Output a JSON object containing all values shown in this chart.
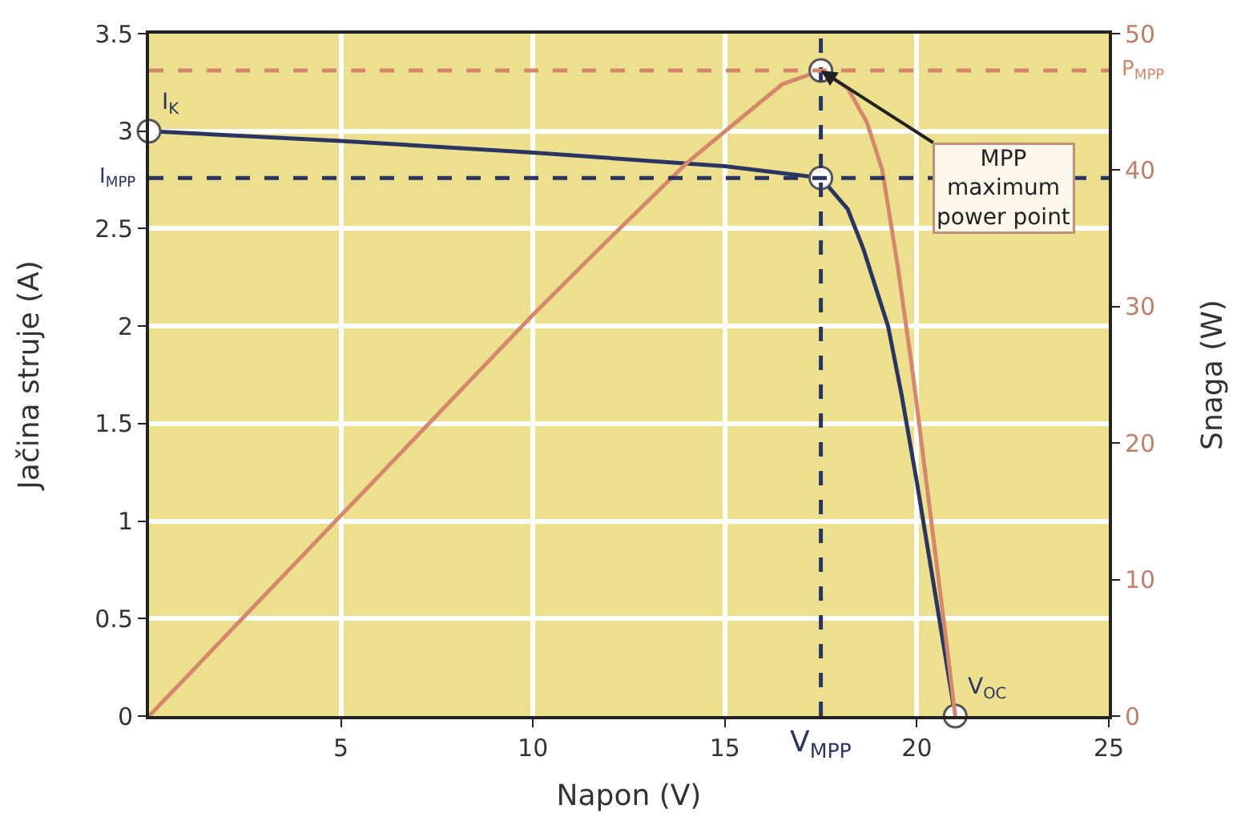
{
  "chart_data": {
    "type": "line",
    "xlabel": "Napon (V)",
    "ylabel": "Jačina struje (A)",
    "y2label": "Snaga (W)",
    "xlim": [
      0,
      25
    ],
    "xticks": [
      5,
      10,
      15,
      20,
      25
    ],
    "ylim": [
      0,
      3.5
    ],
    "yticks": [
      0,
      0.5,
      1,
      1.5,
      2,
      2.5,
      3,
      3.5
    ],
    "y2lim": [
      0,
      50
    ],
    "y2ticks": [
      0,
      10,
      20,
      30,
      40,
      50
    ],
    "grid": true,
    "marker": "none",
    "line_style": "solid",
    "series": [
      {
        "color": "#2b3562",
        "x": [
          0,
          5,
          10,
          15,
          17.5,
          18.2,
          18.6,
          19.25,
          19.6,
          20,
          20.5,
          21
        ],
        "values": [
          3.0,
          2.95,
          2.89,
          2.82,
          2.76,
          2.6,
          2.4,
          2.0,
          1.65,
          1.2,
          0.6,
          0
        ]
      },
      {
        "color": "#d4876a",
        "axis": "y2",
        "x": [
          0,
          5,
          10,
          12,
          14,
          15.5,
          16.5,
          17.5,
          18.2,
          18.7,
          19.1,
          19.5,
          19.9,
          20.3,
          20.7,
          21
        ],
        "values": [
          0,
          14.7,
          29.4,
          35,
          40.5,
          44,
          46.3,
          47.3,
          46,
          43.5,
          40,
          33,
          25,
          16,
          7,
          0
        ]
      },
      {
        "type": "scatter",
        "marker": "circle",
        "color": "#ffffff",
        "x": [
          0,
          17.5,
          21
        ],
        "values": [
          3.0,
          2.76,
          0
        ],
        "value_labels": [
          "I$_{K}$",
          null,
          "V$_{OC}$"
        ]
      },
      {
        "type": "scatter",
        "marker": "circle",
        "color": "#ffffff",
        "axis": "y2",
        "x": [
          17.5
        ],
        "values": [
          47.3
        ]
      }
    ],
    "ref_lines": [
      {
        "axis": "y",
        "value": 2.76,
        "label": "I$_{MPP}$",
        "line_style": "dashed",
        "color": "#2b3562"
      },
      {
        "axis": "x",
        "value": 17.5,
        "label": "V$_{MPP}$",
        "line_style": "dashed",
        "color": "#2b3562"
      },
      {
        "axis": "y2",
        "value": 47.3,
        "label": "P$_{MPP}$",
        "line_style": "dashed",
        "color": "#d4876a"
      }
    ],
    "annotations": [
      "MPP\nmaximum\npower point"
    ]
  }
}
